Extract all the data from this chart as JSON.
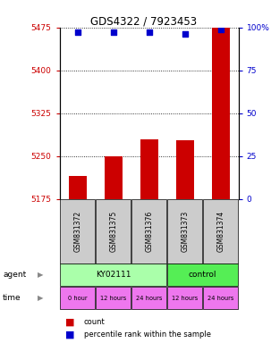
{
  "title": "GDS4322 / 7923453",
  "samples": [
    "GSM831372",
    "GSM831375",
    "GSM831376",
    "GSM831373",
    "GSM831374"
  ],
  "count_values": [
    5215,
    5250,
    5280,
    5278,
    5475
  ],
  "percentile_values": [
    97,
    97,
    97,
    96,
    99
  ],
  "ylim_left": [
    5175,
    5475
  ],
  "ylim_right": [
    0,
    100
  ],
  "yticks_left": [
    5175,
    5250,
    5325,
    5400,
    5475
  ],
  "yticks_right": [
    0,
    25,
    50,
    75,
    100
  ],
  "bar_color": "#cc0000",
  "dot_color": "#0000cc",
  "agent_groups": [
    {
      "label": "KY02111",
      "color": "#aaffaa",
      "cols": [
        0,
        1,
        2
      ]
    },
    {
      "label": "control",
      "color": "#55ee55",
      "cols": [
        3,
        4
      ]
    }
  ],
  "time_labels": [
    "0 hour",
    "12 hours",
    "24 hours",
    "12 hours",
    "24 hours"
  ],
  "time_color": "#ee77ee",
  "sample_box_color": "#cccccc",
  "legend_count_color": "#cc0000",
  "legend_dot_color": "#0000cc",
  "label_agent": "agent",
  "label_time": "time"
}
